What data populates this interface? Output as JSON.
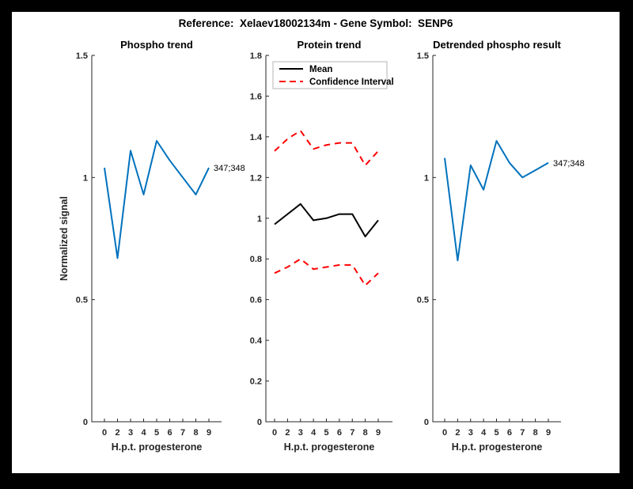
{
  "figure": {
    "title": "Reference:  Xelaev18002134m - Gene Symbol:  SENP6",
    "background": "#ffffff",
    "frame_color": "#000000",
    "axis_color": "#262626"
  },
  "chart_data": [
    {
      "type": "line",
      "title": "Phospho trend",
      "xlabel": "H.p.t. progesterone",
      "ylabel": "Normalized signal",
      "categories": [
        "0",
        "2",
        "3",
        "4",
        "5",
        "6",
        "7",
        "8",
        "9"
      ],
      "ylim": [
        0,
        1.5
      ],
      "yticks": [
        0,
        0.5,
        1,
        1.5
      ],
      "ytick_labels": [
        "0",
        "0.5",
        "1",
        "1.5"
      ],
      "grid": false,
      "legend": null,
      "series": [
        {
          "name": "347;348",
          "color": "#0072BD",
          "dashed": false,
          "end_label": "347;348",
          "values": [
            1.04,
            0.67,
            1.11,
            0.93,
            1.15,
            1.07,
            1.0,
            0.93,
            1.04
          ]
        }
      ]
    },
    {
      "type": "line",
      "title": "Protein trend",
      "xlabel": "H.p.t. progesterone",
      "ylabel": "",
      "categories": [
        "0",
        "2",
        "3",
        "4",
        "5",
        "6",
        "7",
        "8",
        "9"
      ],
      "ylim": [
        0,
        1.8
      ],
      "yticks": [
        0,
        0.2,
        0.4,
        0.6,
        0.8,
        1,
        1.2,
        1.4,
        1.6,
        1.8
      ],
      "ytick_labels": [
        "0",
        "0.2",
        "0.4",
        "0.6",
        "0.8",
        "1",
        "1.2",
        "1.4",
        "1.6",
        "1.8"
      ],
      "grid": false,
      "legend": {
        "position": "north",
        "entries": [
          {
            "label": "Mean",
            "color": "#000000",
            "dashed": false
          },
          {
            "label": "Confidence Interval",
            "color": "#ff0000",
            "dashed": true
          }
        ]
      },
      "series": [
        {
          "name": "Mean",
          "color": "#000000",
          "dashed": false,
          "end_label": null,
          "values": [
            0.97,
            1.02,
            1.07,
            0.99,
            1.0,
            1.02,
            1.02,
            0.91,
            0.99
          ]
        },
        {
          "name": "Confidence Interval (upper)",
          "color": "#ff0000",
          "dashed": true,
          "end_label": null,
          "values": [
            1.33,
            1.39,
            1.43,
            1.34,
            1.36,
            1.37,
            1.37,
            1.26,
            1.33
          ]
        },
        {
          "name": "Confidence Interval (lower)",
          "color": "#ff0000",
          "dashed": true,
          "end_label": null,
          "values": [
            0.73,
            0.76,
            0.8,
            0.75,
            0.76,
            0.77,
            0.77,
            0.67,
            0.73
          ]
        }
      ]
    },
    {
      "type": "line",
      "title": "Detrended phospho result",
      "xlabel": "H.p.t. progesterone",
      "ylabel": "",
      "categories": [
        "0",
        "2",
        "3",
        "4",
        "5",
        "6",
        "7",
        "8",
        "9"
      ],
      "ylim": [
        0,
        1.5
      ],
      "yticks": [
        0,
        0.5,
        1,
        1.5
      ],
      "ytick_labels": [
        "0",
        "0.5",
        "1",
        "1.5"
      ],
      "grid": false,
      "legend": null,
      "series": [
        {
          "name": "347;348",
          "color": "#0072BD",
          "dashed": false,
          "end_label": "347;348",
          "values": [
            1.08,
            0.66,
            1.05,
            0.95,
            1.15,
            1.06,
            1.0,
            1.03,
            1.06
          ]
        }
      ]
    }
  ]
}
